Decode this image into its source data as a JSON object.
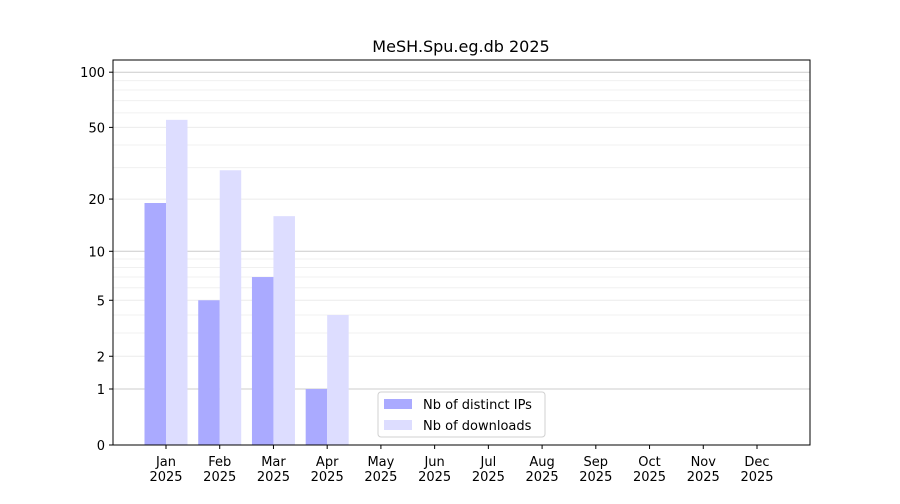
{
  "chart_data": {
    "type": "bar",
    "title": "MeSH.Spu.eg.db 2025",
    "xlabel": "",
    "ylabel": "",
    "yscale": "log(y+1)",
    "ylim": [
      0,
      110
    ],
    "yticks": [
      0,
      1,
      2,
      5,
      10,
      20,
      50,
      100
    ],
    "grid": true,
    "legend_placement": "bottom-center",
    "categories": [
      "Jan\n2025",
      "Feb\n2025",
      "Mar\n2025",
      "Apr\n2025",
      "May\n2025",
      "Jun\n2025",
      "Jul\n2025",
      "Aug\n2025",
      "Sep\n2025",
      "Oct\n2025",
      "Nov\n2025",
      "Dec\n2025"
    ],
    "series": [
      {
        "name": "Nb of distinct IPs",
        "color": "#aaaaff",
        "values": [
          19,
          5,
          7,
          1,
          0,
          0,
          0,
          0,
          0,
          0,
          0,
          0
        ]
      },
      {
        "name": "Nb of downloads",
        "color": "#ddddff",
        "values": [
          55,
          29,
          16,
          4,
          0,
          0,
          0,
          0,
          0,
          0,
          0,
          0
        ]
      }
    ]
  }
}
